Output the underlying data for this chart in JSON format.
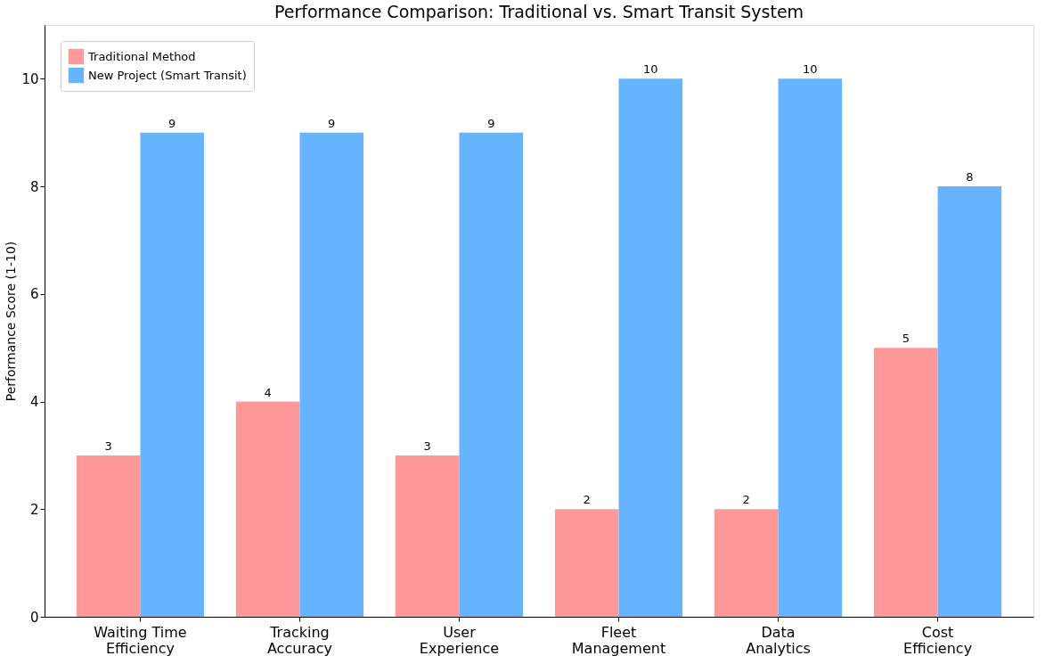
{
  "chart_data": {
    "type": "bar",
    "title": "Performance Comparison: Traditional vs. Smart Transit System",
    "ylabel": "Performance Score (1-10)",
    "categories": [
      "Waiting Time\nEfficiency",
      "Tracking\nAccuracy",
      "User\nExperience",
      "Fleet\nManagement",
      "Data\nAnalytics",
      "Cost\nEfficiency"
    ],
    "series": [
      {
        "name": "Traditional Method",
        "color": "#ff9999",
        "values": [
          3,
          4,
          3,
          2,
          2,
          5
        ]
      },
      {
        "name": "New Project (Smart Transit)",
        "color": "#66b3ff",
        "values": [
          9,
          9,
          9,
          10,
          10,
          8
        ]
      }
    ],
    "ylim": [
      0,
      11
    ],
    "yticks": [
      0,
      2,
      4,
      6,
      8,
      10
    ],
    "grid": false,
    "legend": "top left",
    "data_labels": true
  }
}
